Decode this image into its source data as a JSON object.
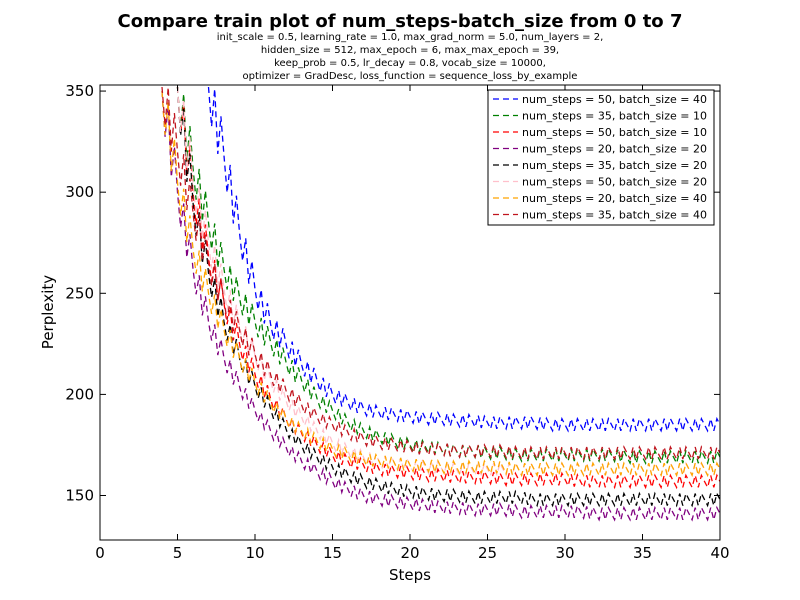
{
  "chart_data": {
    "type": "line",
    "title": "Compare train plot of num_steps-batch_size from 0 to 7",
    "subtitle": [
      "init_scale = 0.5, learning_rate = 1.0, max_grad_norm = 5.0, num_layers = 2,",
      "hidden_size = 512, max_epoch = 6, max_max_epoch = 39,",
      "keep_prob = 0.5, lr_decay = 0.8, vocab_size = 10000,",
      "optimizer = GradDesc, loss_function = sequence_loss_by_example"
    ],
    "xlabel": "Steps",
    "ylabel": "Perplexity",
    "xlim": [
      0,
      40
    ],
    "ylim": [
      128,
      353
    ],
    "xticks": [
      0,
      5,
      10,
      15,
      20,
      25,
      30,
      35,
      40
    ],
    "yticks": [
      150,
      200,
      250,
      300,
      350
    ],
    "line_style": "dashed",
    "legend_position": "top-right",
    "series": [
      {
        "name": "num_steps = 50, batch_size = 40",
        "color": "#0000ff",
        "start_x": 7.0,
        "points": [
          [
            7,
            352
          ],
          [
            8,
            318
          ],
          [
            9,
            280
          ],
          [
            10,
            252
          ],
          [
            11,
            235
          ],
          [
            12,
            225
          ],
          [
            13,
            215
          ],
          [
            14,
            207
          ],
          [
            15,
            200
          ],
          [
            16,
            196
          ],
          [
            17,
            193
          ],
          [
            18,
            191
          ],
          [
            19,
            190
          ],
          [
            20,
            189
          ],
          [
            21,
            188
          ],
          [
            22,
            188
          ],
          [
            23,
            187
          ],
          [
            24,
            187
          ],
          [
            25,
            186
          ],
          [
            26,
            186
          ],
          [
            27,
            186
          ],
          [
            28,
            186
          ],
          [
            29,
            185
          ],
          [
            30,
            185
          ],
          [
            31,
            185
          ],
          [
            32,
            185
          ],
          [
            33,
            185
          ],
          [
            34,
            185
          ],
          [
            35,
            185
          ],
          [
            36,
            185
          ],
          [
            37,
            185
          ],
          [
            38,
            185
          ],
          [
            39,
            185
          ],
          [
            40,
            185
          ]
        ]
      },
      {
        "name": "num_steps = 35, batch_size = 10",
        "color": "#008000",
        "start_x": 5.0,
        "points": [
          [
            5,
            352
          ],
          [
            6,
            312
          ],
          [
            7,
            285
          ],
          [
            8,
            262
          ],
          [
            9,
            248
          ],
          [
            10,
            236
          ],
          [
            11,
            226
          ],
          [
            12,
            216
          ],
          [
            13,
            207
          ],
          [
            14,
            198
          ],
          [
            15,
            192
          ],
          [
            16,
            186
          ],
          [
            17,
            182
          ],
          [
            18,
            179
          ],
          [
            19,
            177
          ],
          [
            20,
            175
          ],
          [
            21,
            174
          ],
          [
            22,
            173
          ],
          [
            23,
            172
          ],
          [
            24,
            172
          ],
          [
            25,
            171
          ],
          [
            26,
            171
          ],
          [
            27,
            170
          ],
          [
            28,
            170
          ],
          [
            29,
            170
          ],
          [
            30,
            170
          ],
          [
            31,
            170
          ],
          [
            32,
            170
          ],
          [
            33,
            170
          ],
          [
            34,
            169
          ],
          [
            35,
            169
          ],
          [
            36,
            169
          ],
          [
            37,
            169
          ],
          [
            38,
            169
          ],
          [
            39,
            169
          ],
          [
            40,
            169
          ]
        ]
      },
      {
        "name": "num_steps = 50, batch_size = 10",
        "color": "#ff0000",
        "start_x": 5.2,
        "points": [
          [
            5,
            352
          ],
          [
            6,
            300
          ],
          [
            7,
            268
          ],
          [
            8,
            245
          ],
          [
            9,
            225
          ],
          [
            10,
            210
          ],
          [
            11,
            198
          ],
          [
            12,
            188
          ],
          [
            13,
            181
          ],
          [
            14,
            175
          ],
          [
            15,
            170
          ],
          [
            16,
            167
          ],
          [
            17,
            165
          ],
          [
            18,
            163
          ],
          [
            19,
            162
          ],
          [
            20,
            161
          ],
          [
            21,
            160
          ],
          [
            22,
            160
          ],
          [
            23,
            159
          ],
          [
            24,
            159
          ],
          [
            25,
            159
          ],
          [
            26,
            158
          ],
          [
            27,
            158
          ],
          [
            28,
            158
          ],
          [
            29,
            158
          ],
          [
            30,
            158
          ],
          [
            31,
            157
          ],
          [
            32,
            157
          ],
          [
            33,
            157
          ],
          [
            34,
            157
          ],
          [
            35,
            157
          ],
          [
            36,
            157
          ],
          [
            37,
            157
          ],
          [
            38,
            157
          ],
          [
            39,
            157
          ],
          [
            40,
            157
          ]
        ]
      },
      {
        "name": "num_steps = 20, batch_size = 20",
        "color": "#800080",
        "start_x": 4.0,
        "points": [
          [
            4,
            350
          ],
          [
            5,
            300
          ],
          [
            6,
            262
          ],
          [
            7,
            236
          ],
          [
            8,
            218
          ],
          [
            9,
            204
          ],
          [
            10,
            192
          ],
          [
            11,
            182
          ],
          [
            12,
            174
          ],
          [
            13,
            167
          ],
          [
            14,
            162
          ],
          [
            15,
            157
          ],
          [
            16,
            153
          ],
          [
            17,
            150
          ],
          [
            18,
            148
          ],
          [
            19,
            147
          ],
          [
            20,
            146
          ],
          [
            21,
            145
          ],
          [
            22,
            144
          ],
          [
            23,
            144
          ],
          [
            24,
            143
          ],
          [
            25,
            143
          ],
          [
            26,
            143
          ],
          [
            27,
            142
          ],
          [
            28,
            142
          ],
          [
            29,
            142
          ],
          [
            30,
            142
          ],
          [
            31,
            142
          ],
          [
            32,
            141
          ],
          [
            33,
            141
          ],
          [
            34,
            141
          ],
          [
            35,
            141
          ],
          [
            36,
            141
          ],
          [
            37,
            141
          ],
          [
            38,
            141
          ],
          [
            39,
            141
          ],
          [
            40,
            141
          ]
        ]
      },
      {
        "name": "num_steps = 35, batch_size = 20",
        "color": "#000000",
        "start_x": 5.0,
        "points": [
          [
            5,
            352
          ],
          [
            6,
            295
          ],
          [
            7,
            260
          ],
          [
            8,
            236
          ],
          [
            9,
            218
          ],
          [
            10,
            204
          ],
          [
            11,
            193
          ],
          [
            12,
            183
          ],
          [
            13,
            175
          ],
          [
            14,
            169
          ],
          [
            15,
            164
          ],
          [
            16,
            160
          ],
          [
            17,
            157
          ],
          [
            18,
            155
          ],
          [
            19,
            153
          ],
          [
            20,
            152
          ],
          [
            21,
            151
          ],
          [
            22,
            150
          ],
          [
            23,
            150
          ],
          [
            24,
            149
          ],
          [
            25,
            149
          ],
          [
            26,
            149
          ],
          [
            27,
            149
          ],
          [
            28,
            148
          ],
          [
            29,
            148
          ],
          [
            30,
            148
          ],
          [
            31,
            148
          ],
          [
            32,
            148
          ],
          [
            33,
            148
          ],
          [
            34,
            148
          ],
          [
            35,
            148
          ],
          [
            36,
            148
          ],
          [
            37,
            148
          ],
          [
            38,
            148
          ],
          [
            39,
            148
          ],
          [
            40,
            148
          ]
        ]
      },
      {
        "name": "num_steps = 50, batch_size = 20",
        "color": "#ffc0cb",
        "start_x": 5.4,
        "points": [
          [
            5,
            352
          ],
          [
            6,
            305
          ],
          [
            7,
            275
          ],
          [
            8,
            252
          ],
          [
            9,
            234
          ],
          [
            10,
            219
          ],
          [
            11,
            207
          ],
          [
            12,
            197
          ],
          [
            13,
            189
          ],
          [
            14,
            182
          ],
          [
            15,
            176
          ],
          [
            16,
            172
          ],
          [
            17,
            169
          ],
          [
            18,
            167
          ],
          [
            19,
            166
          ],
          [
            20,
            165
          ],
          [
            21,
            164
          ],
          [
            22,
            164
          ],
          [
            23,
            163
          ],
          [
            24,
            163
          ],
          [
            25,
            163
          ],
          [
            26,
            163
          ],
          [
            27,
            163
          ],
          [
            28,
            163
          ],
          [
            29,
            163
          ],
          [
            30,
            163
          ],
          [
            31,
            163
          ],
          [
            32,
            163
          ],
          [
            33,
            163
          ],
          [
            34,
            163
          ],
          [
            35,
            163
          ],
          [
            36,
            163
          ],
          [
            37,
            163
          ],
          [
            38,
            163
          ],
          [
            39,
            163
          ],
          [
            40,
            163
          ]
        ]
      },
      {
        "name": "num_steps = 20, batch_size = 40",
        "color": "#ffa500",
        "start_x": 4.3,
        "points": [
          [
            4,
            350
          ],
          [
            5,
            305
          ],
          [
            6,
            272
          ],
          [
            7,
            250
          ],
          [
            8,
            232
          ],
          [
            9,
            218
          ],
          [
            10,
            206
          ],
          [
            11,
            196
          ],
          [
            12,
            188
          ],
          [
            13,
            182
          ],
          [
            14,
            177
          ],
          [
            15,
            173
          ],
          [
            16,
            170
          ],
          [
            17,
            168
          ],
          [
            18,
            167
          ],
          [
            19,
            166
          ],
          [
            20,
            165
          ],
          [
            21,
            165
          ],
          [
            22,
            164
          ],
          [
            23,
            164
          ],
          [
            24,
            164
          ],
          [
            25,
            164
          ],
          [
            26,
            164
          ],
          [
            27,
            163
          ],
          [
            28,
            163
          ],
          [
            29,
            163
          ],
          [
            30,
            163
          ],
          [
            31,
            163
          ],
          [
            32,
            163
          ],
          [
            33,
            163
          ],
          [
            34,
            163
          ],
          [
            35,
            163
          ],
          [
            36,
            163
          ],
          [
            37,
            163
          ],
          [
            38,
            163
          ],
          [
            39,
            163
          ],
          [
            40,
            163
          ]
        ]
      },
      {
        "name": "num_steps = 35, batch_size = 40",
        "color": "#c0141e",
        "start_x": 4.6,
        "points": [
          [
            4,
            352
          ],
          [
            5,
            320
          ],
          [
            6,
            290
          ],
          [
            7,
            265
          ],
          [
            8,
            246
          ],
          [
            9,
            232
          ],
          [
            10,
            220
          ],
          [
            11,
            210
          ],
          [
            12,
            202
          ],
          [
            13,
            195
          ],
          [
            14,
            189
          ],
          [
            15,
            185
          ],
          [
            16,
            181
          ],
          [
            17,
            178
          ],
          [
            18,
            176
          ],
          [
            19,
            175
          ],
          [
            20,
            174
          ],
          [
            21,
            173
          ],
          [
            22,
            173
          ],
          [
            23,
            172
          ],
          [
            24,
            172
          ],
          [
            25,
            172
          ],
          [
            26,
            172
          ],
          [
            27,
            171
          ],
          [
            28,
            171
          ],
          [
            29,
            171
          ],
          [
            30,
            171
          ],
          [
            31,
            171
          ],
          [
            32,
            171
          ],
          [
            33,
            171
          ],
          [
            34,
            171
          ],
          [
            35,
            171
          ],
          [
            36,
            171
          ],
          [
            37,
            171
          ],
          [
            38,
            171
          ],
          [
            39,
            171
          ],
          [
            40,
            171
          ]
        ]
      }
    ]
  }
}
